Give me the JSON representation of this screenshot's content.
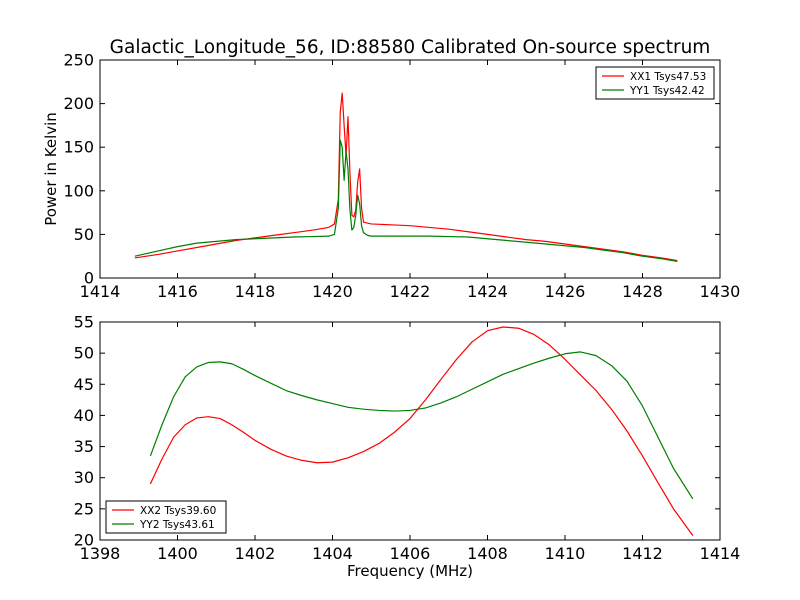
{
  "chart_data": [
    {
      "type": "line",
      "title": "Galactic_Longitude_56, ID:88580 Calibrated On-source spectrum",
      "xlabel": "",
      "ylabel": "Power in Kelvin",
      "xlim": [
        1414,
        1430
      ],
      "ylim": [
        0,
        250
      ],
      "xticks": [
        1414,
        1416,
        1418,
        1420,
        1422,
        1424,
        1426,
        1428,
        1430
      ],
      "yticks": [
        0,
        50,
        100,
        150,
        200,
        250
      ],
      "grid": false,
      "legend_position": "top-right",
      "series": [
        {
          "name": "XX1 Tsys47.53",
          "color": "#ff0000",
          "x": [
            1414.9,
            1415.5,
            1416.0,
            1416.5,
            1417.0,
            1417.5,
            1418.0,
            1418.5,
            1419.0,
            1419.5,
            1419.9,
            1420.05,
            1420.15,
            1420.2,
            1420.25,
            1420.3,
            1420.35,
            1420.4,
            1420.45,
            1420.5,
            1420.55,
            1420.6,
            1420.65,
            1420.7,
            1420.75,
            1420.8,
            1420.9,
            1421.0,
            1421.5,
            1422.0,
            1422.5,
            1423.0,
            1423.5,
            1424.0,
            1424.5,
            1425.0,
            1425.5,
            1426.0,
            1426.5,
            1427.0,
            1427.5,
            1428.0,
            1428.5,
            1428.9
          ],
          "y": [
            23,
            27,
            31,
            35,
            39,
            43,
            46,
            49,
            52,
            55,
            58,
            62,
            90,
            190,
            212,
            175,
            140,
            185,
            120,
            72,
            70,
            78,
            110,
            125,
            80,
            64,
            63,
            62,
            61,
            60,
            58,
            56,
            53,
            50,
            47,
            44,
            42,
            39,
            36,
            33,
            30,
            26,
            23,
            20
          ]
        },
        {
          "name": "YY1 Tsys42.42",
          "color": "#008000",
          "x": [
            1414.9,
            1415.5,
            1416.0,
            1416.5,
            1417.0,
            1417.5,
            1418.0,
            1418.5,
            1419.0,
            1419.5,
            1419.9,
            1420.05,
            1420.15,
            1420.2,
            1420.25,
            1420.3,
            1420.35,
            1420.4,
            1420.45,
            1420.5,
            1420.55,
            1420.6,
            1420.65,
            1420.7,
            1420.75,
            1420.8,
            1420.9,
            1421.0,
            1421.5,
            1422.0,
            1422.5,
            1423.0,
            1423.5,
            1424.0,
            1424.5,
            1425.0,
            1425.5,
            1426.0,
            1426.5,
            1427.0,
            1427.5,
            1428.0,
            1428.5,
            1428.9
          ],
          "y": [
            25,
            31,
            36,
            40,
            42,
            44,
            45,
            46,
            47,
            47.5,
            48,
            50,
            80,
            158,
            150,
            112,
            145,
            125,
            78,
            55,
            58,
            72,
            95,
            85,
            60,
            52,
            49,
            48,
            48,
            48,
            48,
            47.5,
            47,
            45,
            43,
            41,
            39,
            37,
            35,
            32,
            29,
            25,
            22,
            19
          ]
        }
      ]
    },
    {
      "type": "line",
      "title": "",
      "xlabel": "Frequency (MHz)",
      "ylabel": "",
      "xlim": [
        1398,
        1414
      ],
      "ylim": [
        20,
        55
      ],
      "xticks": [
        1398,
        1400,
        1402,
        1404,
        1406,
        1408,
        1410,
        1412,
        1414
      ],
      "yticks": [
        20,
        25,
        30,
        35,
        40,
        45,
        50,
        55
      ],
      "grid": false,
      "legend_position": "bottom-left",
      "series": [
        {
          "name": "XX2 Tsys39.60",
          "color": "#ff0000",
          "x": [
            1399.3,
            1399.6,
            1399.9,
            1400.2,
            1400.5,
            1400.8,
            1401.1,
            1401.4,
            1401.7,
            1402.0,
            1402.4,
            1402.8,
            1403.2,
            1403.6,
            1404.0,
            1404.4,
            1404.8,
            1405.2,
            1405.6,
            1406.0,
            1406.4,
            1406.8,
            1407.2,
            1407.6,
            1408.0,
            1408.4,
            1408.8,
            1409.2,
            1409.6,
            1410.0,
            1410.4,
            1410.8,
            1411.2,
            1411.6,
            1412.0,
            1412.4,
            1412.8,
            1413.3
          ],
          "y": [
            29,
            33,
            36.5,
            38.5,
            39.6,
            39.8,
            39.5,
            38.5,
            37.3,
            36,
            34.6,
            33.5,
            32.8,
            32.4,
            32.5,
            33.2,
            34.2,
            35.5,
            37.3,
            39.5,
            42.5,
            45.8,
            49,
            51.8,
            53.6,
            54.2,
            54,
            53,
            51.3,
            49,
            46.5,
            44,
            41,
            37.5,
            33.5,
            29.2,
            25,
            20.7
          ]
        },
        {
          "name": "YY2 Tsys43.61",
          "color": "#008000",
          "x": [
            1399.3,
            1399.6,
            1399.9,
            1400.2,
            1400.5,
            1400.8,
            1401.1,
            1401.4,
            1401.7,
            1402.0,
            1402.4,
            1402.8,
            1403.2,
            1403.6,
            1404.0,
            1404.4,
            1404.8,
            1405.2,
            1405.6,
            1406.0,
            1406.4,
            1406.8,
            1407.2,
            1407.6,
            1408.0,
            1408.4,
            1408.8,
            1409.2,
            1409.6,
            1410.0,
            1410.4,
            1410.8,
            1411.2,
            1411.6,
            1412.0,
            1412.4,
            1412.8,
            1413.3
          ],
          "y": [
            33.5,
            38.5,
            43,
            46.2,
            47.8,
            48.5,
            48.6,
            48.3,
            47.4,
            46.4,
            45.2,
            44,
            43.2,
            42.5,
            41.9,
            41.3,
            41,
            40.8,
            40.7,
            40.8,
            41.2,
            42,
            43,
            44.2,
            45.4,
            46.6,
            47.5,
            48.4,
            49.2,
            49.9,
            50.2,
            49.6,
            48,
            45.5,
            41.5,
            36.5,
            31.5,
            26.6
          ]
        }
      ]
    }
  ]
}
